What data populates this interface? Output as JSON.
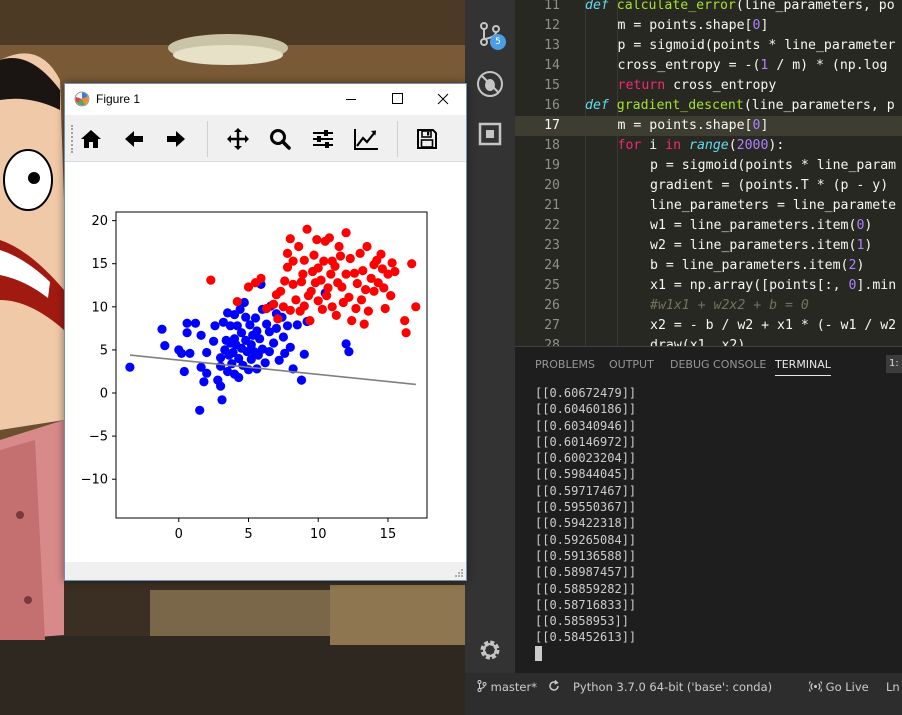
{
  "figure_window": {
    "title": "Figure 1",
    "toolbar": [
      "home-icon",
      "back-arrow-icon",
      "forward-arrow-icon",
      "pan-icon",
      "zoom-icon",
      "configure-subplots-icon",
      "edit-axes-icon",
      "save-icon"
    ]
  },
  "chart_data": {
    "type": "scatter",
    "xlim": [
      -4.5,
      17.8
    ],
    "ylim": [
      -14.5,
      21
    ],
    "x_ticks": [
      "0",
      "5",
      "10",
      "15"
    ],
    "y_ticks": [
      "20",
      "15",
      "10",
      "5",
      "0",
      "−5",
      "−10"
    ],
    "grid": false,
    "series": [
      {
        "color": "#0000ff",
        "points": [
          [
            -3.5,
            3
          ],
          [
            -1.2,
            7.4
          ],
          [
            -1,
            5.5
          ],
          [
            0,
            5
          ],
          [
            0.2,
            4.6
          ],
          [
            0.4,
            2.5
          ],
          [
            0.6,
            7
          ],
          [
            0.6,
            8.1
          ],
          [
            0.8,
            4.6
          ],
          [
            1.2,
            8.1
          ],
          [
            1.6,
            6.7
          ],
          [
            1.6,
            3
          ],
          [
            1.8,
            1.3
          ],
          [
            1.5,
            -2
          ],
          [
            2,
            4.7
          ],
          [
            2,
            2.3
          ],
          [
            2.5,
            6
          ],
          [
            2.6,
            7.8
          ],
          [
            2.8,
            1.5
          ],
          [
            3,
            4.1
          ],
          [
            3,
            3.1
          ],
          [
            3,
            0.8
          ],
          [
            3.1,
            -0.8
          ],
          [
            3.2,
            8.2
          ],
          [
            3.3,
            5
          ],
          [
            3.4,
            6.1
          ],
          [
            3.5,
            9.3
          ],
          [
            3.5,
            2.5
          ],
          [
            3.6,
            4.4
          ],
          [
            3.7,
            7.8
          ],
          [
            3.7,
            5.8
          ],
          [
            3.8,
            3.4
          ],
          [
            3.9,
            4.7
          ],
          [
            4,
            9.1
          ],
          [
            4,
            6.3
          ],
          [
            4,
            2.2
          ],
          [
            4.1,
            5.6
          ],
          [
            4.2,
            7.8
          ],
          [
            4.3,
            4
          ],
          [
            4.3,
            1.8
          ],
          [
            4.4,
            9.7
          ],
          [
            4.5,
            7
          ],
          [
            4.5,
            5.2
          ],
          [
            4.6,
            3.2
          ],
          [
            4.7,
            10.5
          ],
          [
            4.8,
            8.8
          ],
          [
            4.8,
            6.1
          ],
          [
            4.9,
            4.8
          ],
          [
            5,
            2.7
          ],
          [
            5.1,
            7.9
          ],
          [
            5.2,
            5.6
          ],
          [
            5.2,
            3.9
          ],
          [
            5.3,
            6.7
          ],
          [
            5.4,
            4.8
          ],
          [
            5.5,
            8.7
          ],
          [
            5.6,
            7.2
          ],
          [
            5.6,
            2.8
          ],
          [
            5.7,
            4.4
          ],
          [
            5.8,
            6.3
          ],
          [
            5.9,
            12.6
          ],
          [
            6,
            9.7
          ],
          [
            6,
            5.1
          ],
          [
            6.2,
            3.5
          ],
          [
            6.3,
            8
          ],
          [
            6.5,
            7.1
          ],
          [
            6.5,
            4.8
          ],
          [
            6.6,
            10.1
          ],
          [
            6.8,
            5.8
          ],
          [
            7,
            9.2
          ],
          [
            7,
            7.5
          ],
          [
            7.2,
            3.8
          ],
          [
            7.4,
            8.8
          ],
          [
            7.5,
            6.5
          ],
          [
            7.6,
            4.6
          ],
          [
            7.8,
            7.8
          ],
          [
            8,
            5.3
          ],
          [
            8.2,
            2.8
          ],
          [
            8.5,
            7.9
          ],
          [
            8.8,
            1.5
          ],
          [
            9,
            4.5
          ],
          [
            9.2,
            8.3
          ],
          [
            10.5,
            11.6
          ],
          [
            12,
            5.7
          ],
          [
            12.2,
            4.8
          ]
        ]
      },
      {
        "color": "#ff0000",
        "points": [
          [
            2.3,
            13.1
          ],
          [
            4.2,
            10.6
          ],
          [
            5,
            12.3
          ],
          [
            5.5,
            12.8
          ],
          [
            5.9,
            13.3
          ],
          [
            6.3,
            9.8
          ],
          [
            6.8,
            10.3
          ],
          [
            7,
            11.4
          ],
          [
            7.1,
            8.6
          ],
          [
            7.3,
            11.8
          ],
          [
            7.5,
            10
          ],
          [
            7.6,
            13
          ],
          [
            7.8,
            14.6
          ],
          [
            7.8,
            16.2
          ],
          [
            8,
            17.9
          ],
          [
            8,
            9.6
          ],
          [
            8.2,
            12.6
          ],
          [
            8.2,
            15.3
          ],
          [
            8.4,
            10.8
          ],
          [
            8.6,
            17
          ],
          [
            8.7,
            9.5
          ],
          [
            8.8,
            12.9
          ],
          [
            8.9,
            13.8
          ],
          [
            9,
            15.4
          ],
          [
            9,
            10.1
          ],
          [
            9.2,
            19
          ],
          [
            9.3,
            11.3
          ],
          [
            9.4,
            8.4
          ],
          [
            9.5,
            11.8
          ],
          [
            9.6,
            14.1
          ],
          [
            9.7,
            16
          ],
          [
            9.8,
            12.8
          ],
          [
            9.9,
            17.8
          ],
          [
            10,
            10.7
          ],
          [
            10,
            14.5
          ],
          [
            10.2,
            13.1
          ],
          [
            10.3,
            9.7
          ],
          [
            10.4,
            15.3
          ],
          [
            10.5,
            17.6
          ],
          [
            10.6,
            11.3
          ],
          [
            10.7,
            12.2
          ],
          [
            10.8,
            18
          ],
          [
            10.9,
            13.8
          ],
          [
            11,
            15.3
          ],
          [
            11,
            10
          ],
          [
            11.2,
            14.7
          ],
          [
            11.3,
            9
          ],
          [
            11.4,
            12.8
          ],
          [
            11.5,
            17
          ],
          [
            11.6,
            15.9
          ],
          [
            11.7,
            12.3
          ],
          [
            11.8,
            10.5
          ],
          [
            12,
            13.8
          ],
          [
            12,
            18.6
          ],
          [
            12.2,
            11.1
          ],
          [
            12.3,
            15.6
          ],
          [
            12.4,
            8.4
          ],
          [
            12.6,
            13.9
          ],
          [
            12.7,
            9.8
          ],
          [
            12.8,
            12.7
          ],
          [
            13,
            16.2
          ],
          [
            13.1,
            10.8
          ],
          [
            13.2,
            14.2
          ],
          [
            13.3,
            8
          ],
          [
            13.4,
            12
          ],
          [
            13.5,
            17
          ],
          [
            13.6,
            9.5
          ],
          [
            13.8,
            13.3
          ],
          [
            14,
            14.9
          ],
          [
            14,
            11.8
          ],
          [
            14.2,
            15.4
          ],
          [
            14.3,
            12.8
          ],
          [
            14.5,
            16.1
          ],
          [
            14.6,
            14.4
          ],
          [
            14.7,
            12.2
          ],
          [
            14.8,
            9.8
          ],
          [
            15,
            13.8
          ],
          [
            15.2,
            11.3
          ],
          [
            15.3,
            15.1
          ],
          [
            15.5,
            14.1
          ],
          [
            16.2,
            8.4
          ],
          [
            16.3,
            7
          ],
          [
            17,
            10
          ],
          [
            16.7,
            15
          ]
        ]
      }
    ],
    "line": {
      "color": "#808080",
      "points": [
        [
          -3.5,
          4.4
        ],
        [
          17,
          1
        ]
      ]
    }
  },
  "editor": {
    "lines": [
      {
        "n": "11",
        "indent": 0,
        "tokens": [
          [
            "kw",
            "def "
          ],
          [
            "fn",
            "calculate_error"
          ],
          [
            "",
            "(line_parameters, po"
          ]
        ]
      },
      {
        "n": "12",
        "indent": 1,
        "tokens": [
          [
            "",
            "m = points.shape["
          ],
          [
            "num",
            "0"
          ],
          [
            "",
            "]"
          ]
        ]
      },
      {
        "n": "13",
        "indent": 1,
        "tokens": [
          [
            "",
            "p = sigmoid(points * line_parameter"
          ]
        ]
      },
      {
        "n": "14",
        "indent": 1,
        "tokens": [
          [
            "",
            "cross_entropy = -("
          ],
          [
            "num",
            "1"
          ],
          [
            "",
            " / m) * (np.log"
          ]
        ]
      },
      {
        "n": "15",
        "indent": 1,
        "tokens": [
          [
            "kw2",
            "return"
          ],
          [
            "",
            " cross_entropy"
          ]
        ]
      },
      {
        "n": "16",
        "indent": 0,
        "tokens": [
          [
            "kw",
            "def "
          ],
          [
            "fn",
            "gradient_descent"
          ],
          [
            "",
            "(line_parameters, p"
          ]
        ]
      },
      {
        "n": "17",
        "indent": 1,
        "current": true,
        "tokens": [
          [
            "",
            "m = points.shape["
          ],
          [
            "num",
            "0"
          ],
          [
            "",
            "]"
          ]
        ]
      },
      {
        "n": "18",
        "indent": 1,
        "tokens": [
          [
            "kw2",
            "for"
          ],
          [
            "",
            " i "
          ],
          [
            "kw2",
            "in"
          ],
          [
            "",
            " "
          ],
          [
            "kw",
            "range"
          ],
          [
            "",
            "("
          ],
          [
            "num",
            "2000"
          ],
          [
            "",
            "):"
          ]
        ]
      },
      {
        "n": "19",
        "indent": 2,
        "tokens": [
          [
            "",
            "p = sigmoid(points * line_param"
          ]
        ]
      },
      {
        "n": "20",
        "indent": 2,
        "tokens": [
          [
            "",
            "gradient = (points.T * (p - y)"
          ]
        ]
      },
      {
        "n": "21",
        "indent": 2,
        "tokens": [
          [
            "",
            "line_parameters = line_paramete"
          ]
        ]
      },
      {
        "n": "22",
        "indent": 2,
        "tokens": [
          [
            "",
            "w1 = line_parameters.item("
          ],
          [
            "num",
            "0"
          ],
          [
            "",
            ")"
          ]
        ]
      },
      {
        "n": "23",
        "indent": 2,
        "tokens": [
          [
            "",
            "w2 = line_parameters.item("
          ],
          [
            "num",
            "1"
          ],
          [
            "",
            ")"
          ]
        ]
      },
      {
        "n": "24",
        "indent": 2,
        "tokens": [
          [
            "",
            "b = line_parameters.item("
          ],
          [
            "num",
            "2"
          ],
          [
            "",
            ")"
          ]
        ]
      },
      {
        "n": "25",
        "indent": 2,
        "tokens": [
          [
            "",
            "x1 = np.array([points[:, "
          ],
          [
            "num",
            "0"
          ],
          [
            "",
            "].min"
          ]
        ]
      },
      {
        "n": "26",
        "indent": 2,
        "tokens": [
          [
            "cm",
            "#w1x1 + w2x2 + b = 0"
          ]
        ]
      },
      {
        "n": "27",
        "indent": 2,
        "tokens": [
          [
            "",
            "x2 = - b / w2 + x1 * (- w1 / w2"
          ]
        ]
      },
      {
        "n": "28",
        "indent": 2,
        "tokens": [
          [
            "",
            "draw(x1, x2)"
          ]
        ]
      }
    ]
  },
  "panel": {
    "tabs": [
      "PROBLEMS",
      "OUTPUT",
      "DEBUG CONSOLE",
      "TERMINAL"
    ],
    "active_tab": "TERMINAL",
    "terminal_selector": "1:",
    "terminal_lines": [
      "[[0.60672479]]",
      "[[0.60460186]]",
      "[[0.60340946]]",
      "[[0.60146972]]",
      "[[0.60023204]]",
      "[[0.59844045]]",
      "[[0.59717467]]",
      "[[0.59550367]]",
      "[[0.59422318]]",
      "[[0.59265084]]",
      "[[0.59136588]]",
      "[[0.58987457]]",
      "[[0.58859282]]",
      "[[0.58716833]]",
      "[[0.5858953]]",
      "[[0.58452613]]"
    ]
  },
  "activity_bar": {
    "scm_badge": "5",
    "icons": [
      "source-control-icon",
      "debug-icon",
      "extensions-icon",
      "settings-gear-icon"
    ]
  },
  "statusbar": {
    "branch": "master*",
    "python": "Python 3.7.0 64-bit ('base': conda)",
    "golive": "Go Live",
    "position": "Ln"
  }
}
